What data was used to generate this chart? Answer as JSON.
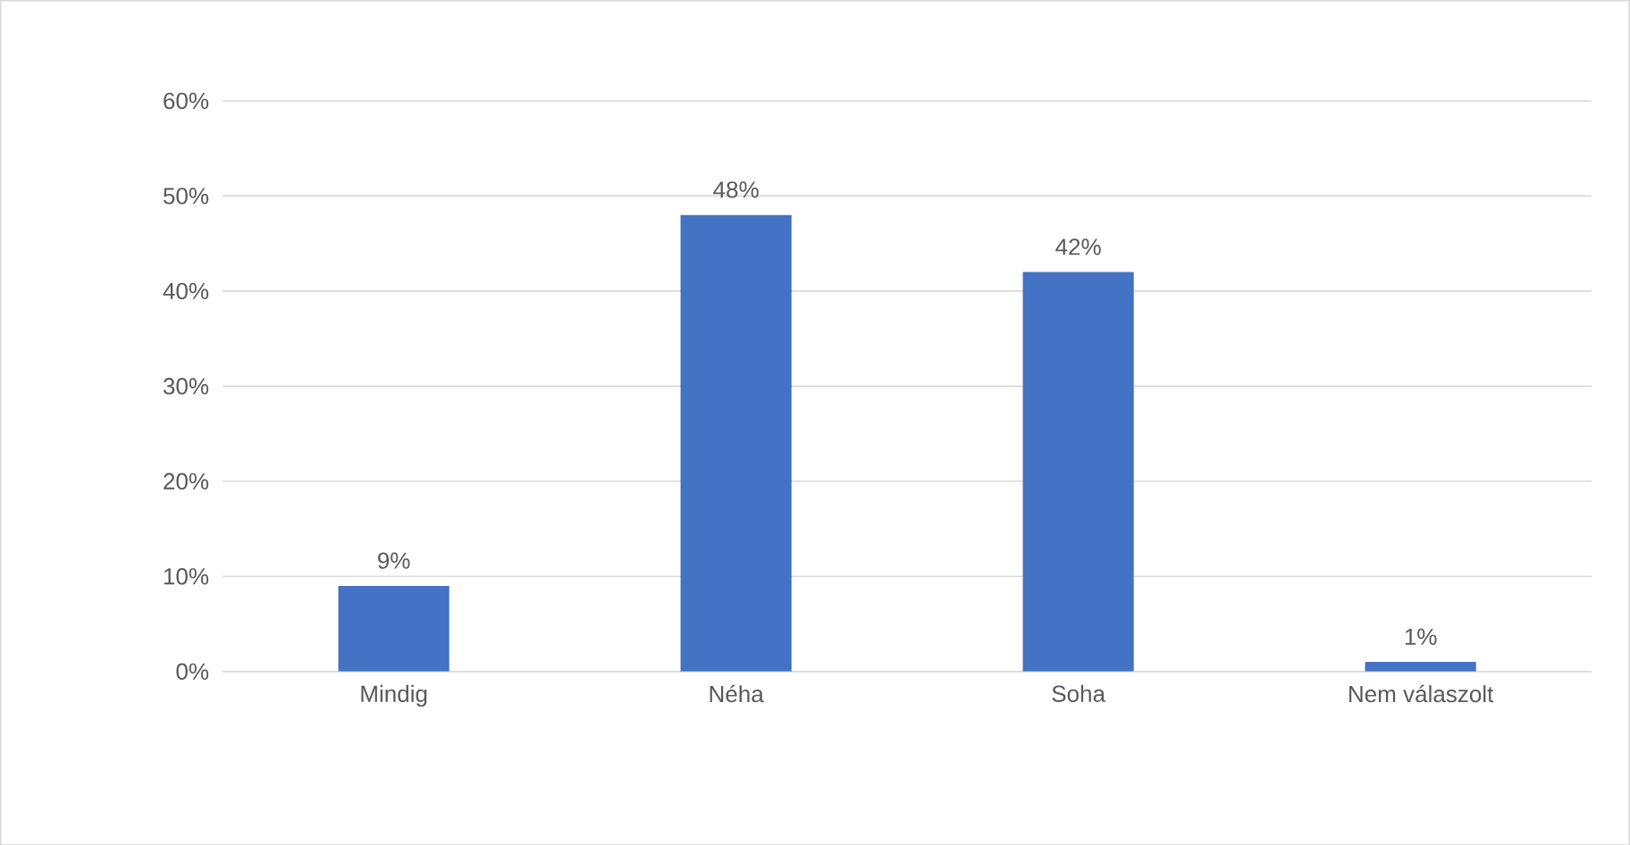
{
  "chart_data": {
    "type": "bar",
    "categories": [
      "Mindig",
      "Néha",
      "Soha",
      "Nem válaszolt"
    ],
    "values": [
      9,
      48,
      42,
      1
    ],
    "value_labels": [
      "9%",
      "48%",
      "42%",
      "1%"
    ],
    "color": "#4472c4",
    "ylim": [
      0,
      60
    ],
    "yticks": [
      {
        "value": 0,
        "label": "0%"
      },
      {
        "value": 10,
        "label": "10%"
      },
      {
        "value": 20,
        "label": "20%"
      },
      {
        "value": 30,
        "label": "30%"
      },
      {
        "value": 40,
        "label": "40%"
      },
      {
        "value": 50,
        "label": "50%"
      },
      {
        "value": 60,
        "label": "60%"
      }
    ],
    "grid": "y"
  }
}
